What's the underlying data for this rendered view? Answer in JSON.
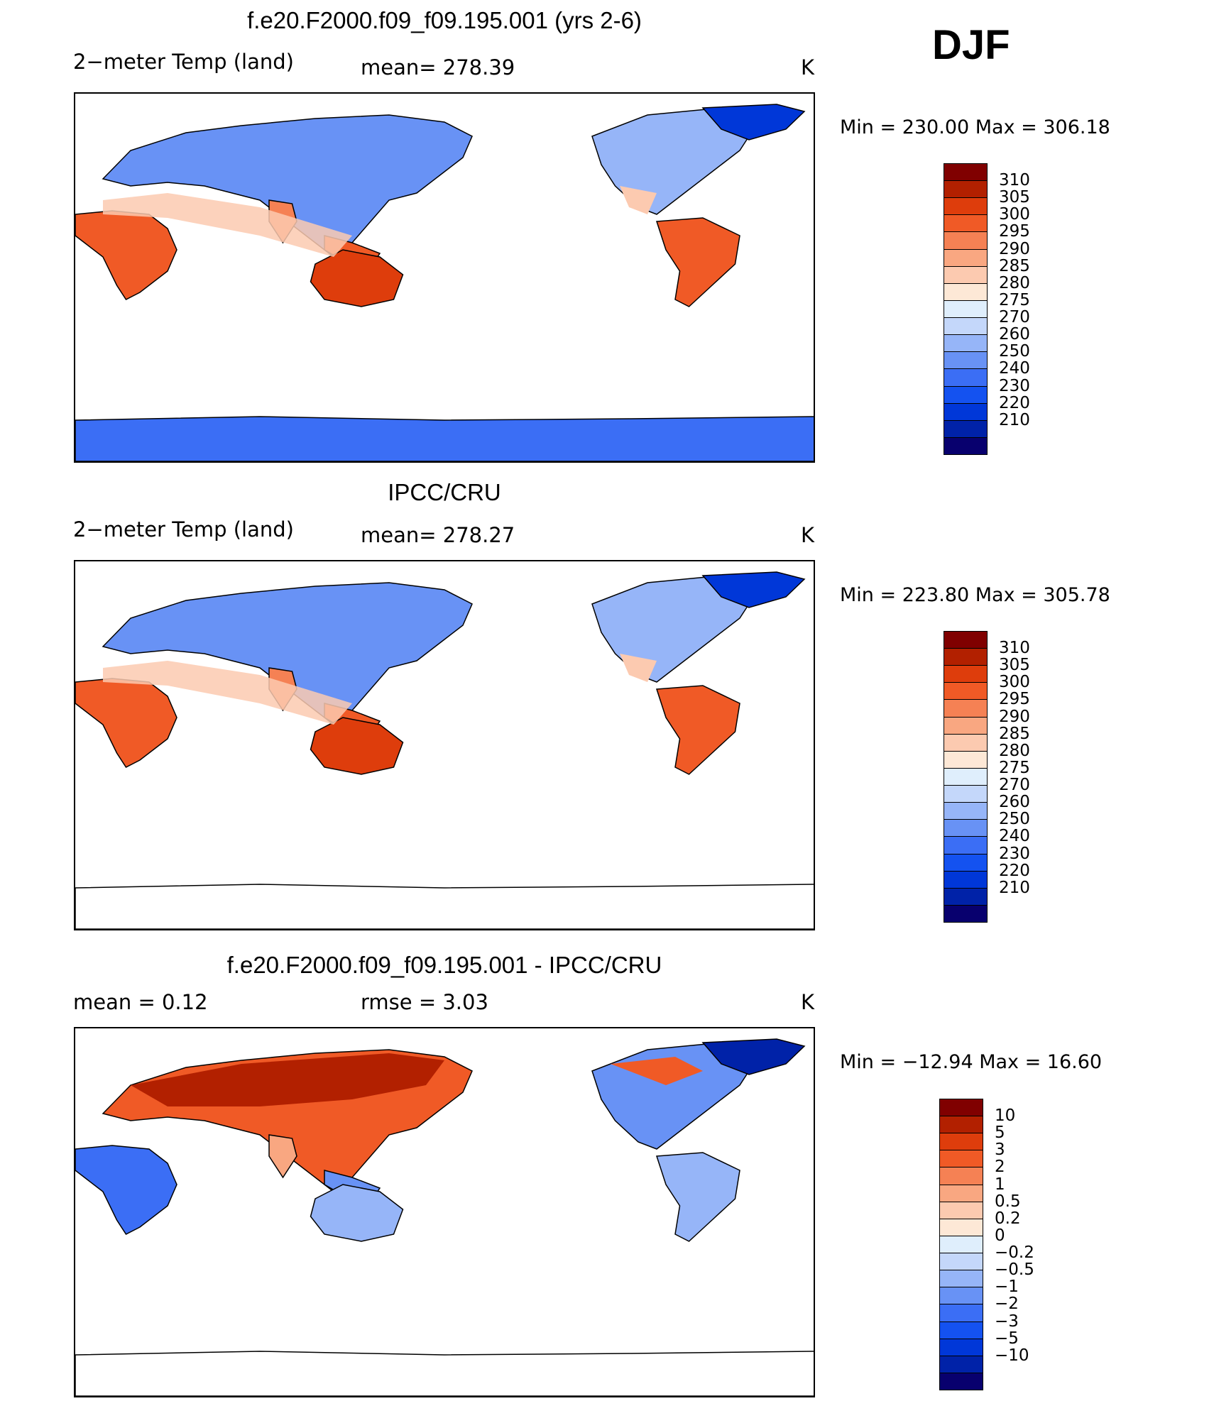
{
  "season": "DJF",
  "colors": {
    "abs": [
      "#08006e",
      "#0022a8",
      "#0037d8",
      "#1452f0",
      "#3b6ef5",
      "#6892f5",
      "#96b5f8",
      "#c4d7fa",
      "#dfeefc",
      "#fde8d6",
      "#fccab0",
      "#f9a781",
      "#f58154",
      "#f05a26",
      "#de3d0c",
      "#b22000",
      "#800000"
    ],
    "diff": [
      "#08006e",
      "#0022a8",
      "#0037d8",
      "#1452f0",
      "#3b6ef5",
      "#6892f5",
      "#96b5f8",
      "#c4d7fa",
      "#dfeefc",
      "#fde8d6",
      "#fccab0",
      "#f9a781",
      "#f58154",
      "#f05a26",
      "#de3d0c",
      "#b22000",
      "#800000"
    ],
    "land_cold": "#3b6ef5",
    "land_warm": "#f05a26"
  },
  "panels": [
    {
      "title": "f.e20.F2000.f09_f09.195.001 (yrs 2-6)",
      "left_label": "2−meter Temp (land)",
      "mid_label": "mean=  278.39",
      "units": "K",
      "minmax": "Min  =  230.00  Max  =  306.18",
      "legend_labels": [
        "310",
        "305",
        "300",
        "295",
        "290",
        "285",
        "280",
        "275",
        "270",
        "260",
        "250",
        "240",
        "230",
        "220",
        "210"
      ],
      "kind": "model"
    },
    {
      "title": "IPCC/CRU",
      "left_label": "2−meter Temp (land)",
      "mid_label": "mean=  278.27",
      "units": "K",
      "minmax": "Min  =  223.80  Max  =  305.78",
      "legend_labels": [
        "310",
        "305",
        "300",
        "295",
        "290",
        "285",
        "280",
        "275",
        "270",
        "260",
        "250",
        "240",
        "230",
        "220",
        "210"
      ],
      "kind": "obs"
    },
    {
      "title": "f.e20.F2000.f09_f09.195.001 - IPCC/CRU",
      "left_label": "mean  =      0.12",
      "mid_label": "rmse  =      3.03",
      "units": "K",
      "minmax": "Min  =  −12.94  Max  =    16.60",
      "legend_labels": [
        "10",
        "5",
        "3",
        "2",
        "1",
        "0.5",
        "0.2",
        "0",
        "−0.2",
        "−0.5",
        "−1",
        "−2",
        "−3",
        "−5",
        "−10"
      ],
      "kind": "diff"
    }
  ]
}
